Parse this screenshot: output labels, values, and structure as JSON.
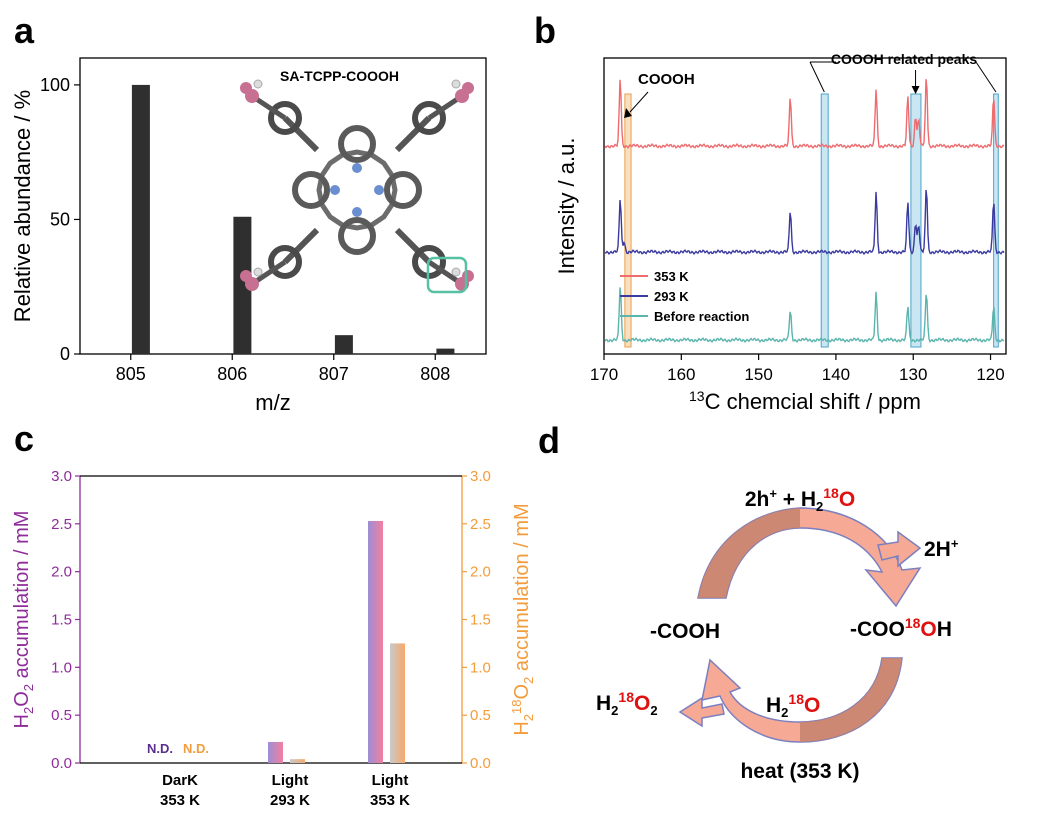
{
  "panels": {
    "a": {
      "letter": "a",
      "inset_label": "SA-TCPP-COOOH",
      "chart_data": {
        "type": "bar",
        "categories": [
          "805",
          "806",
          "807",
          "808"
        ],
        "x": [
          805.1,
          806.1,
          807.1,
          808.1
        ],
        "values": [
          100,
          51,
          7,
          2
        ],
        "xlabel": "m/z",
        "ylabel": "Relative abundance / %",
        "xlim": [
          804.5,
          808.5
        ],
        "ylim": [
          0,
          110
        ],
        "xticks": [
          "805",
          "806",
          "807",
          "808"
        ],
        "yticks": [
          "0",
          "50",
          "100"
        ],
        "grid": false,
        "bar_color": "#2f2f2f"
      }
    },
    "b": {
      "letter": "b",
      "annotation_top": "COOOH related peaks",
      "annotation_left": "COOOH",
      "chart_data": {
        "type": "line",
        "xlabel_sup": "13",
        "xlabel": "C chemcial shift / ppm",
        "ylabel": "Intensity / a.u.",
        "xlim": [
          170,
          118
        ],
        "xticks": [
          "170",
          "160",
          "150",
          "140",
          "130",
          "120"
        ],
        "series": [
          {
            "name": "353 K",
            "color": "#ee6b6e",
            "peaks_ppm": [
              167.9,
              145.9,
              134.8,
              130.7,
              129.7,
              129.3,
              128.3,
              119.6
            ],
            "peak_heights": [
              0.85,
              0.62,
              0.72,
              0.62,
              0.38,
              0.34,
              0.88,
              0.62
            ]
          },
          {
            "name": "293 K",
            "color": "#3a3aa0",
            "peaks_ppm": [
              167.9,
              167.4,
              145.9,
              134.8,
              130.7,
              129.7,
              129.3,
              128.3,
              119.6
            ],
            "peak_heights": [
              0.75,
              0.15,
              0.58,
              0.84,
              0.7,
              0.42,
              0.38,
              0.92,
              0.72
            ]
          },
          {
            "name": "Before reaction",
            "color": "#5bb5ad",
            "peaks_ppm": [
              167.9,
              145.9,
              134.8,
              130.7,
              128.3,
              119.6
            ],
            "peak_heights": [
              0.8,
              0.44,
              0.7,
              0.5,
              0.72,
              0.5
            ]
          }
        ],
        "highlight_regions_ppm": [
          {
            "from": 167.3,
            "to": 166.5,
            "color": "#f6c48a"
          },
          {
            "from": 141.9,
            "to": 141.0,
            "color": "#9fd1e9"
          },
          {
            "from": 130.3,
            "to": 129.0,
            "color": "#9fd1e9"
          },
          {
            "from": 119.6,
            "to": 119.0,
            "color": "#9fd1e9"
          }
        ],
        "legend_position": "bottom-left"
      }
    },
    "c": {
      "letter": "c",
      "nd_label": "N.D.",
      "chart_data": {
        "type": "bar",
        "categories": [
          [
            "DarK",
            "353 K"
          ],
          [
            "Light",
            "293 K"
          ],
          [
            "Light",
            "353 K"
          ]
        ],
        "series": [
          {
            "name": "H2O2",
            "axis": "left",
            "values": [
              0,
              0.22,
              2.53
            ],
            "detected": [
              false,
              true,
              true
            ]
          },
          {
            "name": "H2-18O2",
            "axis": "right",
            "values": [
              0,
              0.04,
              1.25
            ],
            "detected": [
              false,
              true,
              true
            ]
          }
        ],
        "ylabel_left": {
          "pre": "H",
          "sub1": "2",
          "mid": "O",
          "sub2": "2",
          "post": " accumulation / mM"
        },
        "ylabel_right": {
          "pre": "H",
          "sub1": "2",
          "sup": "18",
          "mid": "O",
          "sub2": "2",
          "post": " accumulation / mM"
        },
        "ylim": [
          0,
          3.0
        ],
        "yticks": [
          "0.0",
          "0.5",
          "1.0",
          "1.5",
          "2.0",
          "2.5",
          "3.0"
        ],
        "left_axis_color": "#8e2c9a",
        "right_axis_color": "#f39c3c",
        "grid": false
      }
    },
    "d": {
      "letter": "d",
      "top_label": {
        "pre": "2h",
        "sup_plus": "+",
        "mid": " + H",
        "sub": "2",
        "iso": "18",
        "post": "O"
      },
      "right_top_label": {
        "pre": "2H",
        "sup_plus": "+"
      },
      "right_label": {
        "pre": "-COO",
        "iso": "18",
        "post": "OH"
      },
      "left_label": "-COOH",
      "bottom_left_label": {
        "pre": "H",
        "sub": "2",
        "iso": "18",
        "post": "O",
        "sub2": "2"
      },
      "bottom_mid_label": {
        "pre": "H",
        "sub": "2",
        "iso": "18",
        "post": "O"
      },
      "bottom_label": "heat (353 K)",
      "arrow_fill": "#f6a995",
      "arrow_dark": "#c6826e",
      "arrow_stroke": "#7b7fbf",
      "iso_color": "#e01010"
    }
  }
}
